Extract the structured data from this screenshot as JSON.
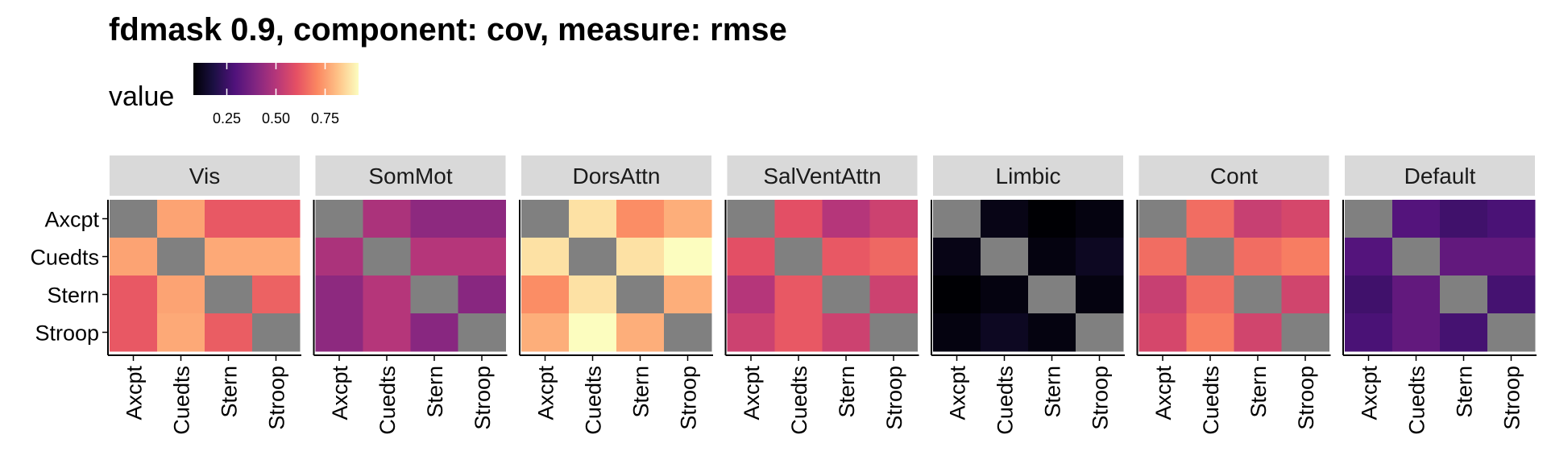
{
  "chart_data": {
    "type": "heatmap",
    "title": "fdmask 0.9, component: cov, measure: rmse",
    "legend": {
      "title": "value",
      "ticks": [
        0.25,
        0.5,
        0.75
      ],
      "tick_labels": [
        "0.25",
        "0.50",
        "0.75"
      ],
      "range": [
        0.08,
        0.92
      ],
      "colormap": "magma",
      "placement": "top"
    },
    "missing_color": "#808080",
    "rows": [
      "Axcpt",
      "Cuedts",
      "Stern",
      "Stroop"
    ],
    "cols": [
      "Axcpt",
      "Cuedts",
      "Stern",
      "Stroop"
    ],
    "panels": [
      {
        "name": "Vis",
        "values": [
          [
            null,
            0.76,
            0.62,
            0.62
          ],
          [
            0.76,
            null,
            0.77,
            0.77
          ],
          [
            0.62,
            0.76,
            null,
            0.64
          ],
          [
            0.62,
            0.77,
            0.63,
            null
          ]
        ]
      },
      {
        "name": "SomMot",
        "values": [
          [
            null,
            0.48,
            0.42,
            0.42
          ],
          [
            0.48,
            null,
            0.5,
            0.5
          ],
          [
            0.42,
            0.5,
            null,
            0.41
          ],
          [
            0.42,
            0.5,
            0.41,
            null
          ]
        ]
      },
      {
        "name": "DorsAttn",
        "values": [
          [
            null,
            0.87,
            0.72,
            0.78
          ],
          [
            0.87,
            null,
            0.87,
            0.92
          ],
          [
            0.72,
            0.87,
            null,
            0.78
          ],
          [
            0.78,
            0.92,
            0.78,
            null
          ]
        ]
      },
      {
        "name": "SalVentAttn",
        "values": [
          [
            null,
            0.6,
            0.5,
            0.55
          ],
          [
            0.6,
            null,
            0.62,
            0.65
          ],
          [
            0.5,
            0.62,
            null,
            0.55
          ],
          [
            0.55,
            0.62,
            0.55,
            null
          ]
        ]
      },
      {
        "name": "Limbic",
        "values": [
          [
            null,
            0.11,
            0.08,
            0.1
          ],
          [
            0.11,
            null,
            0.1,
            0.13
          ],
          [
            0.08,
            0.1,
            null,
            0.1
          ],
          [
            0.1,
            0.13,
            0.1,
            null
          ]
        ]
      },
      {
        "name": "Cont",
        "values": [
          [
            null,
            0.66,
            0.54,
            0.57
          ],
          [
            0.66,
            null,
            0.66,
            0.69
          ],
          [
            0.54,
            0.66,
            null,
            0.56
          ],
          [
            0.57,
            0.69,
            0.56,
            null
          ]
        ]
      },
      {
        "name": "Default",
        "values": [
          [
            null,
            0.3,
            0.26,
            0.28
          ],
          [
            0.3,
            null,
            0.33,
            0.33
          ],
          [
            0.26,
            0.33,
            null,
            0.27
          ],
          [
            0.28,
            0.33,
            0.27,
            null
          ]
        ]
      }
    ]
  }
}
